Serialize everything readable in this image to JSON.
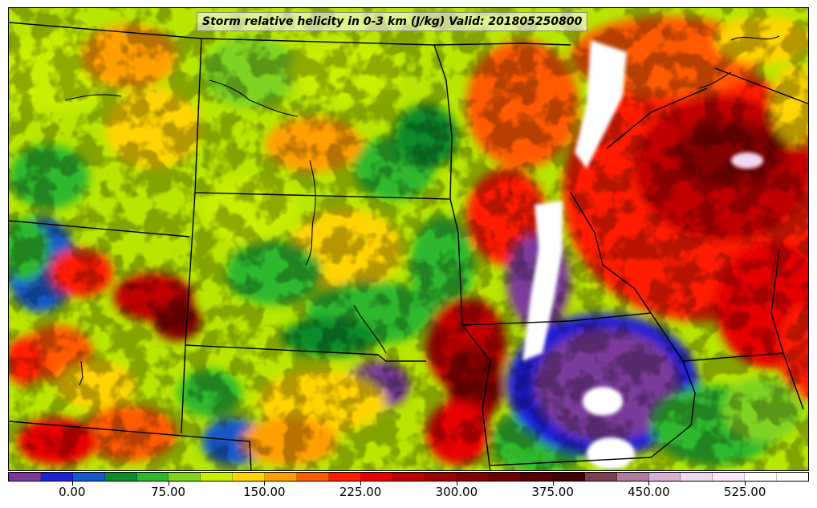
{
  "title": "Storm relative helicity in 0-3 km (J/kg) Valid: 201805250800",
  "colorbar": {
    "min": -50,
    "max": 575,
    "step": 25,
    "colors": [
      "#7a3a9a",
      "#1f1fd6",
      "#1558c7",
      "#0a8a2a",
      "#2db82d",
      "#7ed321",
      "#c8ee00",
      "#ffd400",
      "#ff9f00",
      "#ff5a00",
      "#ff1a00",
      "#e60000",
      "#c00000",
      "#a00000",
      "#820000",
      "#6a0000",
      "#520000",
      "#3e0000",
      "#7a4050",
      "#b07ca0",
      "#d8b0d6",
      "#f0d8f0",
      "#ffe8ff",
      "#ffffff",
      "#ffffff"
    ],
    "tick_labels": [
      "0.00",
      "75.00",
      "150.00",
      "225.00",
      "300.00",
      "375.00",
      "450.00",
      "525.00"
    ]
  }
}
